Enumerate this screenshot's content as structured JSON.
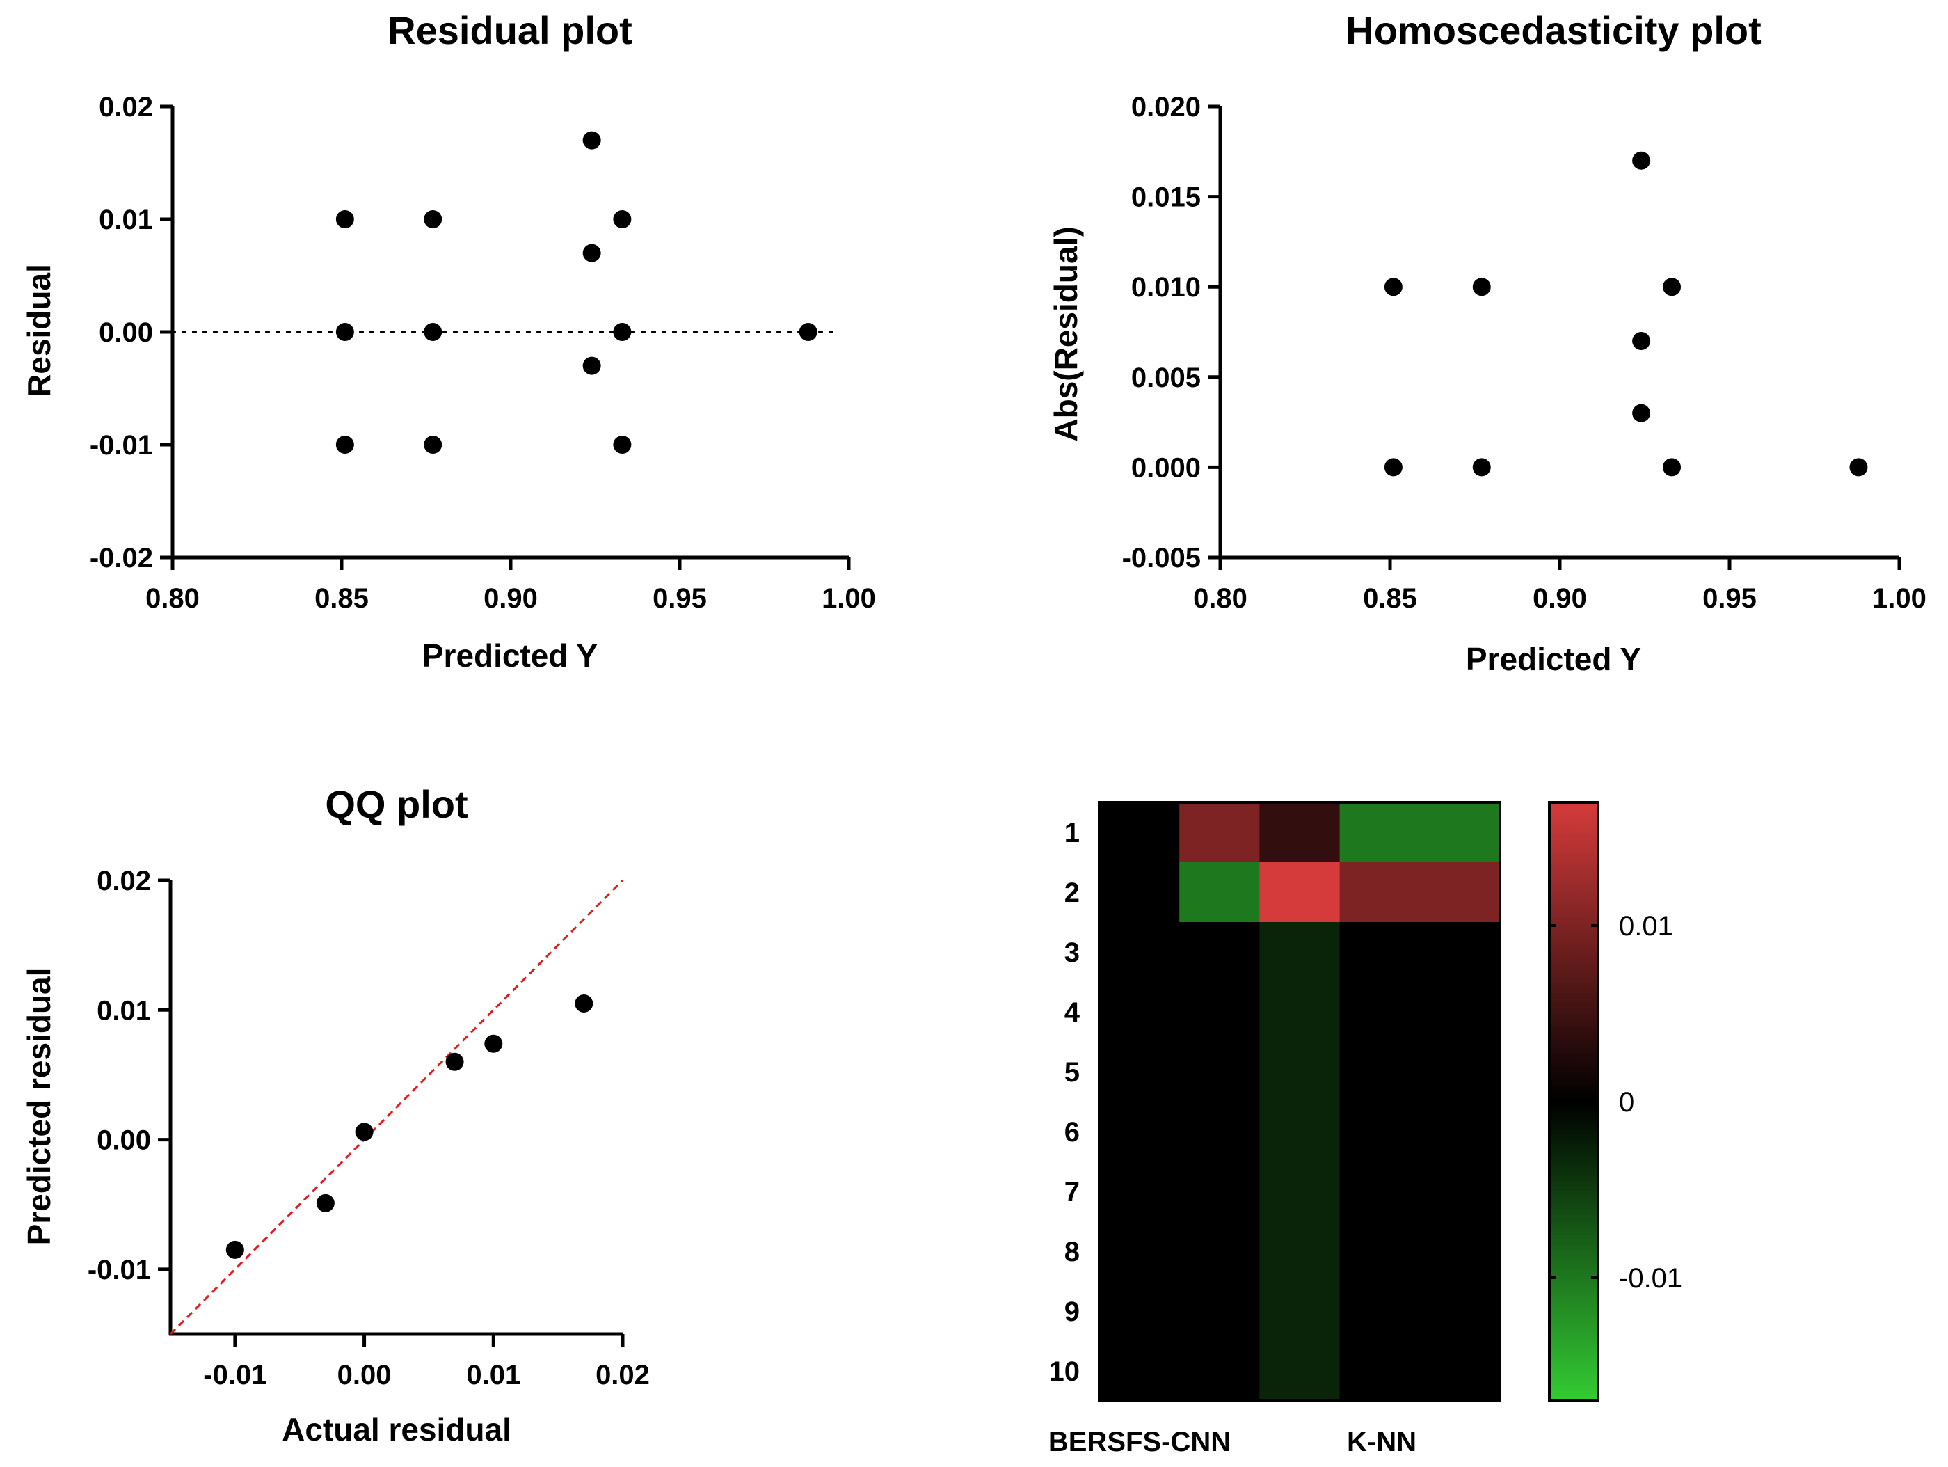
{
  "chart_data": [
    {
      "type": "scatter",
      "title": "Residual plot",
      "xlabel": "Predicted Y",
      "ylabel": "Residual",
      "xlim": [
        0.8,
        1.0
      ],
      "ylim": [
        -0.02,
        0.02
      ],
      "xticks": [
        "0.80",
        "0.85",
        "0.90",
        "0.95",
        "1.00"
      ],
      "yticks": [
        "-0.02",
        "-0.01",
        "0.00",
        "0.01",
        "0.02"
      ],
      "reference_line": {
        "y": 0,
        "style": "dotted",
        "color": "#000000"
      },
      "points": [
        {
          "x": 0.851,
          "y": 0.01
        },
        {
          "x": 0.851,
          "y": 0.0
        },
        {
          "x": 0.851,
          "y": -0.01
        },
        {
          "x": 0.877,
          "y": 0.01
        },
        {
          "x": 0.877,
          "y": 0.0
        },
        {
          "x": 0.877,
          "y": -0.01
        },
        {
          "x": 0.924,
          "y": 0.017
        },
        {
          "x": 0.924,
          "y": 0.007
        },
        {
          "x": 0.924,
          "y": -0.003
        },
        {
          "x": 0.933,
          "y": 0.01
        },
        {
          "x": 0.933,
          "y": 0.0
        },
        {
          "x": 0.933,
          "y": -0.01
        },
        {
          "x": 0.988,
          "y": 0.0
        }
      ]
    },
    {
      "type": "scatter",
      "title": "Homoscedasticity plot",
      "xlabel": "Predicted Y",
      "ylabel": "Abs(Residual)",
      "xlim": [
        0.8,
        1.0
      ],
      "ylim": [
        -0.005,
        0.02
      ],
      "xticks": [
        "0.80",
        "0.85",
        "0.90",
        "0.95",
        "1.00"
      ],
      "yticks": [
        "-0.005",
        "0.000",
        "0.005",
        "0.010",
        "0.015",
        "0.020"
      ],
      "points": [
        {
          "x": 0.851,
          "y": 0.01
        },
        {
          "x": 0.851,
          "y": 0.0
        },
        {
          "x": 0.877,
          "y": 0.01
        },
        {
          "x": 0.877,
          "y": 0.0
        },
        {
          "x": 0.924,
          "y": 0.017
        },
        {
          "x": 0.924,
          "y": 0.007
        },
        {
          "x": 0.924,
          "y": 0.003
        },
        {
          "x": 0.933,
          "y": 0.01
        },
        {
          "x": 0.933,
          "y": 0.0
        },
        {
          "x": 0.988,
          "y": 0.0
        }
      ]
    },
    {
      "type": "scatter",
      "title": "QQ plot",
      "xlabel": "Actual residual",
      "ylabel": "Predicted residual",
      "xlim": [
        -0.015,
        0.02
      ],
      "ylim": [
        -0.015,
        0.02
      ],
      "xticks": [
        "-0.01",
        "0.00",
        "0.01",
        "0.02"
      ],
      "yticks": [
        "-0.01",
        "0.00",
        "0.01",
        "0.02"
      ],
      "reference_line": {
        "type": "identity",
        "style": "dashed",
        "color": "#e01b1b"
      },
      "points": [
        {
          "x": -0.01,
          "y": -0.0085
        },
        {
          "x": -0.003,
          "y": -0.0049
        },
        {
          "x": 0.0,
          "y": 0.0006
        },
        {
          "x": 0.007,
          "y": 0.006
        },
        {
          "x": 0.01,
          "y": 0.0074
        },
        {
          "x": 0.017,
          "y": 0.0105
        }
      ]
    },
    {
      "type": "heatmap",
      "title": "",
      "rows": [
        "1",
        "2",
        "3",
        "4",
        "5",
        "6",
        "7",
        "8",
        "9",
        "10"
      ],
      "column_labels": [
        "BERSFS-CNN",
        "K-NN"
      ],
      "column_count": 5,
      "values": [
        [
          0,
          0.01,
          0.004,
          -0.01,
          -0.01
        ],
        [
          0,
          -0.01,
          0.017,
          0.01,
          0.01
        ],
        [
          0,
          0,
          -0.003,
          0,
          0
        ],
        [
          0,
          0,
          -0.003,
          0,
          0
        ],
        [
          0,
          0,
          -0.003,
          0,
          0
        ],
        [
          0,
          0,
          -0.003,
          0,
          0
        ],
        [
          0,
          0,
          -0.003,
          0,
          0
        ],
        [
          0,
          0,
          -0.003,
          0,
          0
        ],
        [
          0,
          0,
          -0.003,
          0,
          0
        ],
        [
          0,
          0,
          -0.003,
          0,
          0
        ]
      ],
      "colorbar": {
        "min": -0.017,
        "max": 0.017,
        "ticks": [
          {
            "value": 0.01,
            "label": "0.01"
          },
          {
            "value": 0,
            "label": "0"
          },
          {
            "value": -0.01,
            "label": "-0.01"
          }
        ],
        "color_max": "#d63b3b",
        "color_mid": "#000000",
        "color_min": "#33cc33"
      }
    }
  ]
}
